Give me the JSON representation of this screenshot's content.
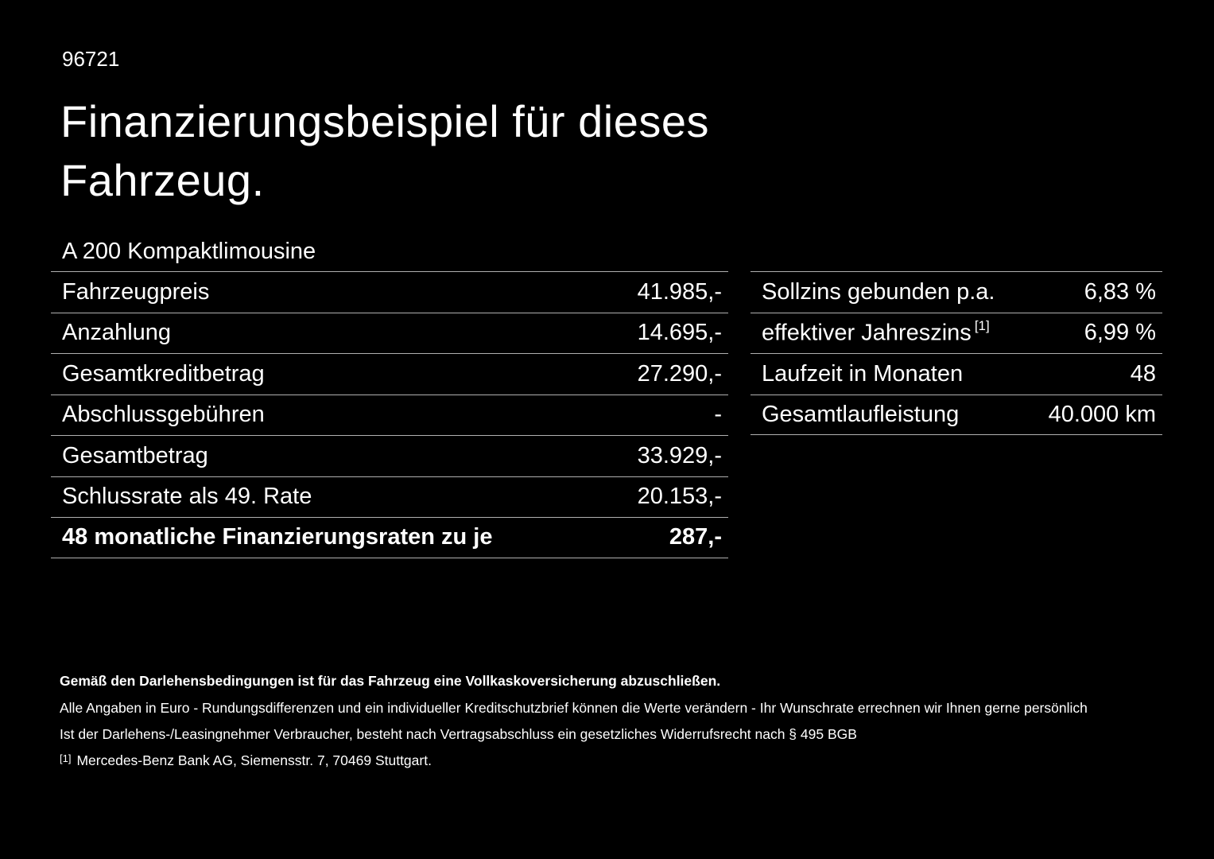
{
  "colors": {
    "background": "#000000",
    "text": "#ffffff",
    "divider": "#b0b0b0"
  },
  "header": {
    "document_number": "96721",
    "title": "Finanzierungsbeispiel für dieses Fahrzeug.",
    "vehicle_model": "A 200 Kompaktlimousine"
  },
  "finance_table": {
    "rows": [
      {
        "label": "Fahrzeugpreis",
        "value": "41.985,-"
      },
      {
        "label": "Anzahlung",
        "value": "14.695,-"
      },
      {
        "label": "Gesamtkreditbetrag",
        "value": "27.290,-"
      },
      {
        "label": "Abschlussgebühren",
        "value": "-"
      },
      {
        "label": "Gesamtbetrag",
        "value": "33.929,-"
      },
      {
        "label": "Schlussrate als 49. Rate",
        "value": "20.153,-"
      },
      {
        "label": "48 monatliche Finanzierungsraten zu je",
        "value": "287,-"
      }
    ]
  },
  "conditions_table": {
    "rows": [
      {
        "label": "Sollzins gebunden p.a.",
        "value": "6,83 %"
      },
      {
        "label": "effektiver Jahreszins",
        "footnote_ref": "[1]",
        "value": "6,99 %"
      },
      {
        "label": "Laufzeit in Monaten",
        "value": "48"
      },
      {
        "label": "Gesamtlaufleistung",
        "value": "40.000 km"
      }
    ]
  },
  "footer": {
    "insurance_note": "Gemäß den Darlehensbedingungen ist für das Fahrzeug eine Vollkaskoversicherung abzuschließen.",
    "disclaimer_1": "Alle Angaben in Euro - Rundungsdifferenzen und ein individueller Kreditschutzbrief können die Werte verändern - Ihr Wunschrate errechnen wir Ihnen gerne persönlich",
    "disclaimer_2": "Ist der Darlehens-/Leasingnehmer Verbraucher, besteht nach Vertragsabschluss ein gesetzliches Widerrufsrecht nach § 495 BGB",
    "footnote_marker": "[1]",
    "footnote_text": "Mercedes-Benz Bank AG, Siemensstr. 7, 70469 Stuttgart."
  }
}
